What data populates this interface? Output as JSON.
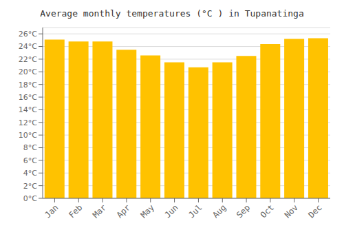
{
  "chart_data": {
    "type": "bar",
    "title": "Average monthly temperatures (°C ) in Tupanatinga",
    "categories": [
      "Jan",
      "Feb",
      "Mar",
      "Apr",
      "May",
      "Jun",
      "Jul",
      "Aug",
      "Sep",
      "Oct",
      "Nov",
      "Dec"
    ],
    "values": [
      25.1,
      24.8,
      24.8,
      23.5,
      22.6,
      21.5,
      20.7,
      21.5,
      22.5,
      24.4,
      25.2,
      25.3
    ],
    "color": "#FFC200",
    "ylim": [
      0,
      27
    ],
    "yticks": [
      {
        "value": 0,
        "label": "0°C"
      },
      {
        "value": 2,
        "label": "2°C"
      },
      {
        "value": 4,
        "label": "4°C"
      },
      {
        "value": 6,
        "label": "6°C"
      },
      {
        "value": 8,
        "label": "8°C"
      },
      {
        "value": 10,
        "label": "10°C"
      },
      {
        "value": 12,
        "label": "12°C"
      },
      {
        "value": 14,
        "label": "14°C"
      },
      {
        "value": 16,
        "label": "16°C"
      },
      {
        "value": 18,
        "label": "18°C"
      },
      {
        "value": 20,
        "label": "20°C"
      },
      {
        "value": 22,
        "label": "22°C"
      },
      {
        "value": 24,
        "label": "24°C"
      },
      {
        "value": 26,
        "label": "26°C"
      }
    ],
    "grid": true
  }
}
